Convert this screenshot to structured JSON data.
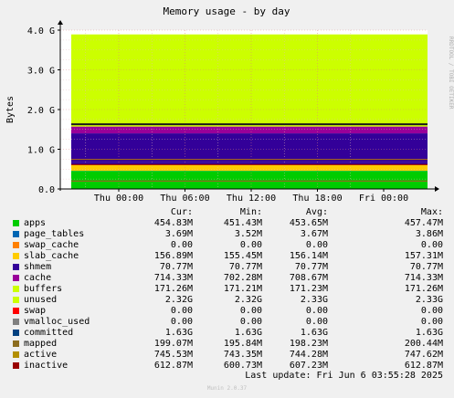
{
  "chart_data": {
    "type": "area",
    "title": "Memory usage - by day",
    "ylabel": "Bytes",
    "ylim": [
      0,
      4.0
    ],
    "yticks": [
      {
        "value": 0.0,
        "label": "0.0"
      },
      {
        "value": 1.0,
        "label": "1.0 G"
      },
      {
        "value": 2.0,
        "label": "2.0 G"
      },
      {
        "value": 3.0,
        "label": "3.0 G"
      },
      {
        "value": 4.0,
        "label": "4.0 G"
      }
    ],
    "xticks": [
      "Thu 00:00",
      "Thu 06:00",
      "Thu 12:00",
      "Thu 18:00",
      "Fri 00:00"
    ],
    "grid": true,
    "stacked_series_gb": [
      {
        "name": "apps",
        "value": 0.455,
        "color": "#00cc00"
      },
      {
        "name": "page_tables",
        "value": 0.0037,
        "color": "#0066b3"
      },
      {
        "name": "swap_cache",
        "value": 0.0,
        "color": "#ff8000"
      },
      {
        "name": "slab_cache",
        "value": 0.157,
        "color": "#ffcc00"
      },
      {
        "name": "shmem",
        "value": 0.071,
        "color": "#330099"
      },
      {
        "name": "cache",
        "value": 0.714,
        "color": "#330099"
      },
      {
        "name": "buffers",
        "value": 0.171,
        "color": "#990099"
      },
      {
        "name": "unused",
        "value": 2.32,
        "color": "#ccff00"
      }
    ],
    "line_series_gb": [
      {
        "name": "committed",
        "value": 1.63,
        "color": "#1a1a1a"
      },
      {
        "name": "mapped",
        "value": 0.199,
        "color": "#8c6d1f"
      },
      {
        "name": "active",
        "value": 0.746,
        "color": "#a06020"
      },
      {
        "name": "inactive",
        "value": 0.613,
        "color": "#990000"
      }
    ]
  },
  "legend": {
    "headers": [
      "Cur:",
      "Min:",
      "Avg:",
      "Max:"
    ],
    "rows": [
      {
        "name": "apps",
        "color": "#00cc00",
        "cur": "454.83M",
        "min": "451.43M",
        "avg": "453.65M",
        "max": "457.47M"
      },
      {
        "name": "page_tables",
        "color": "#0066b3",
        "cur": "3.69M",
        "min": "3.52M",
        "avg": "3.67M",
        "max": "3.86M"
      },
      {
        "name": "swap_cache",
        "color": "#ff8000",
        "cur": "0.00",
        "min": "0.00",
        "avg": "0.00",
        "max": "0.00"
      },
      {
        "name": "slab_cache",
        "color": "#ffcc00",
        "cur": "156.89M",
        "min": "155.45M",
        "avg": "156.14M",
        "max": "157.31M"
      },
      {
        "name": "shmem",
        "color": "#330099",
        "cur": "70.77M",
        "min": "70.77M",
        "avg": "70.77M",
        "max": "70.77M"
      },
      {
        "name": "cache",
        "color": "#990099",
        "cur": "714.33M",
        "min": "702.28M",
        "avg": "708.67M",
        "max": "714.33M"
      },
      {
        "name": "buffers",
        "color": "#ccff00",
        "cur": "171.26M",
        "min": "171.21M",
        "avg": "171.23M",
        "max": "171.26M"
      },
      {
        "name": "unused",
        "color": "#ccff00",
        "cur": "2.32G",
        "min": "2.32G",
        "avg": "2.33G",
        "max": "2.33G"
      },
      {
        "name": "swap",
        "color": "#ff0000",
        "cur": "0.00",
        "min": "0.00",
        "avg": "0.00",
        "max": "0.00"
      },
      {
        "name": "vmalloc_used",
        "color": "#808080",
        "cur": "0.00",
        "min": "0.00",
        "avg": "0.00",
        "max": "0.00"
      },
      {
        "name": "committed",
        "color": "#004080",
        "cur": "1.63G",
        "min": "1.63G",
        "avg": "1.63G",
        "max": "1.63G"
      },
      {
        "name": "mapped",
        "color": "#8c6d1f",
        "cur": "199.07M",
        "min": "195.84M",
        "avg": "198.23M",
        "max": "200.44M"
      },
      {
        "name": "active",
        "color": "#b38f00",
        "cur": "745.53M",
        "min": "743.35M",
        "avg": "744.28M",
        "max": "747.62M"
      },
      {
        "name": "inactive",
        "color": "#990000",
        "cur": "612.87M",
        "min": "600.73M",
        "avg": "607.23M",
        "max": "612.87M"
      }
    ]
  },
  "footer": {
    "last_update": "Last update: Fri Jun  6 03:55:28 2025",
    "munin": "Munin 2.0.37",
    "rrdtool": "RRDTOOL / TOBI OETIKER"
  }
}
